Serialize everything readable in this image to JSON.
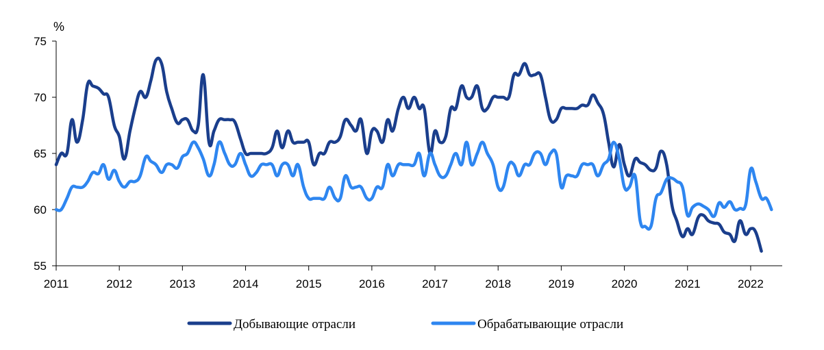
{
  "chart_data": {
    "type": "line",
    "unit_label": "%",
    "ylim": [
      55,
      75
    ],
    "yticks": [
      "55",
      "60",
      "65",
      "70",
      "75"
    ],
    "xlim": [
      2011,
      2022.5
    ],
    "xticks": [
      "2011",
      "2012",
      "2013",
      "2014",
      "2015",
      "2016",
      "2017",
      "2018",
      "2019",
      "2020",
      "2021",
      "2022"
    ],
    "grid": false,
    "legend_position": "bottom",
    "series": [
      {
        "name": "Добывающие отрасли",
        "color": "#1a3e8c",
        "points": [
          [
            2011.0,
            64.0
          ],
          [
            2011.08,
            65.0
          ],
          [
            2011.17,
            65.0
          ],
          [
            2011.25,
            68.0
          ],
          [
            2011.33,
            66.0
          ],
          [
            2011.42,
            68.0
          ],
          [
            2011.5,
            71.2
          ],
          [
            2011.58,
            71.0
          ],
          [
            2011.67,
            70.8
          ],
          [
            2011.75,
            70.3
          ],
          [
            2011.83,
            70.0
          ],
          [
            2011.92,
            67.5
          ],
          [
            2012.0,
            66.5
          ],
          [
            2012.08,
            64.5
          ],
          [
            2012.17,
            67.0
          ],
          [
            2012.25,
            69.0
          ],
          [
            2012.33,
            70.5
          ],
          [
            2012.42,
            70.0
          ],
          [
            2012.5,
            71.5
          ],
          [
            2012.58,
            73.3
          ],
          [
            2012.67,
            73.0
          ],
          [
            2012.75,
            70.5
          ],
          [
            2012.83,
            69.0
          ],
          [
            2012.92,
            67.7
          ],
          [
            2013.0,
            68.0
          ],
          [
            2013.08,
            68.0
          ],
          [
            2013.17,
            67.0
          ],
          [
            2013.25,
            67.5
          ],
          [
            2013.33,
            72.0
          ],
          [
            2013.42,
            66.0
          ],
          [
            2013.5,
            67.0
          ],
          [
            2013.58,
            68.0
          ],
          [
            2013.67,
            68.0
          ],
          [
            2013.75,
            68.0
          ],
          [
            2013.83,
            67.8
          ],
          [
            2013.92,
            66.3
          ],
          [
            2014.0,
            65.0
          ],
          [
            2014.08,
            65.0
          ],
          [
            2014.17,
            65.0
          ],
          [
            2014.25,
            65.0
          ],
          [
            2014.33,
            65.0
          ],
          [
            2014.42,
            65.5
          ],
          [
            2014.5,
            67.0
          ],
          [
            2014.58,
            65.5
          ],
          [
            2014.67,
            67.0
          ],
          [
            2014.75,
            66.0
          ],
          [
            2014.83,
            66.0
          ],
          [
            2014.92,
            66.0
          ],
          [
            2015.0,
            66.0
          ],
          [
            2015.08,
            64.0
          ],
          [
            2015.17,
            65.0
          ],
          [
            2015.25,
            65.0
          ],
          [
            2015.33,
            66.0
          ],
          [
            2015.42,
            66.0
          ],
          [
            2015.5,
            66.5
          ],
          [
            2015.58,
            68.0
          ],
          [
            2015.67,
            67.5
          ],
          [
            2015.75,
            67.0
          ],
          [
            2015.83,
            68.0
          ],
          [
            2015.92,
            65.0
          ],
          [
            2016.0,
            67.0
          ],
          [
            2016.08,
            67.0
          ],
          [
            2016.17,
            66.0
          ],
          [
            2016.25,
            68.0
          ],
          [
            2016.33,
            67.0
          ],
          [
            2016.42,
            69.0
          ],
          [
            2016.5,
            70.0
          ],
          [
            2016.58,
            69.0
          ],
          [
            2016.67,
            70.0
          ],
          [
            2016.75,
            69.0
          ],
          [
            2016.83,
            69.0
          ],
          [
            2016.92,
            65.0
          ],
          [
            2017.0,
            67.0
          ],
          [
            2017.08,
            66.0
          ],
          [
            2017.17,
            66.5
          ],
          [
            2017.25,
            69.0
          ],
          [
            2017.33,
            69.0
          ],
          [
            2017.42,
            71.0
          ],
          [
            2017.5,
            70.0
          ],
          [
            2017.58,
            70.0
          ],
          [
            2017.67,
            71.0
          ],
          [
            2017.75,
            69.0
          ],
          [
            2017.83,
            69.0
          ],
          [
            2017.92,
            70.0
          ],
          [
            2018.0,
            70.0
          ],
          [
            2018.08,
            70.0
          ],
          [
            2018.17,
            70.0
          ],
          [
            2018.25,
            72.0
          ],
          [
            2018.33,
            72.0
          ],
          [
            2018.42,
            73.0
          ],
          [
            2018.5,
            72.0
          ],
          [
            2018.58,
            72.0
          ],
          [
            2018.67,
            72.0
          ],
          [
            2018.75,
            70.0
          ],
          [
            2018.83,
            68.0
          ],
          [
            2018.92,
            68.0
          ],
          [
            2019.0,
            69.0
          ],
          [
            2019.08,
            69.0
          ],
          [
            2019.17,
            69.0
          ],
          [
            2019.25,
            69.0
          ],
          [
            2019.33,
            69.3
          ],
          [
            2019.42,
            69.3
          ],
          [
            2019.5,
            70.2
          ],
          [
            2019.58,
            69.5
          ],
          [
            2019.67,
            68.5
          ],
          [
            2019.75,
            66.0
          ],
          [
            2019.83,
            63.8
          ],
          [
            2019.92,
            65.8
          ],
          [
            2020.0,
            64.0
          ],
          [
            2020.08,
            63.0
          ],
          [
            2020.17,
            64.5
          ],
          [
            2020.25,
            64.2
          ],
          [
            2020.33,
            64.0
          ],
          [
            2020.42,
            63.5
          ],
          [
            2020.5,
            63.7
          ],
          [
            2020.58,
            65.2
          ],
          [
            2020.67,
            64.0
          ],
          [
            2020.75,
            60.5
          ],
          [
            2020.83,
            59.0
          ],
          [
            2020.92,
            57.6
          ],
          [
            2021.0,
            58.3
          ],
          [
            2021.08,
            57.8
          ],
          [
            2021.17,
            59.3
          ],
          [
            2021.25,
            59.5
          ],
          [
            2021.33,
            59.0
          ],
          [
            2021.42,
            58.8
          ],
          [
            2021.5,
            58.7
          ],
          [
            2021.58,
            58.0
          ],
          [
            2021.67,
            57.8
          ],
          [
            2021.75,
            57.2
          ],
          [
            2021.83,
            59.0
          ],
          [
            2021.92,
            57.8
          ],
          [
            2022.0,
            58.3
          ],
          [
            2022.08,
            58.0
          ],
          [
            2022.17,
            56.3
          ]
        ]
      },
      {
        "name": "Обрабатывающие отрасли",
        "color": "#2e86f0",
        "points": [
          [
            2011.0,
            60.0
          ],
          [
            2011.08,
            60.0
          ],
          [
            2011.17,
            61.0
          ],
          [
            2011.25,
            62.0
          ],
          [
            2011.33,
            62.0
          ],
          [
            2011.42,
            62.0
          ],
          [
            2011.5,
            62.5
          ],
          [
            2011.58,
            63.3
          ],
          [
            2011.67,
            63.2
          ],
          [
            2011.75,
            64.0
          ],
          [
            2011.83,
            62.7
          ],
          [
            2011.92,
            63.5
          ],
          [
            2012.0,
            62.5
          ],
          [
            2012.08,
            62.0
          ],
          [
            2012.17,
            62.5
          ],
          [
            2012.25,
            62.5
          ],
          [
            2012.33,
            63.0
          ],
          [
            2012.42,
            64.7
          ],
          [
            2012.5,
            64.3
          ],
          [
            2012.58,
            64.0
          ],
          [
            2012.67,
            63.3
          ],
          [
            2012.75,
            64.0
          ],
          [
            2012.83,
            64.0
          ],
          [
            2012.92,
            63.7
          ],
          [
            2013.0,
            64.7
          ],
          [
            2013.08,
            65.0
          ],
          [
            2013.17,
            66.0
          ],
          [
            2013.25,
            65.5
          ],
          [
            2013.33,
            64.5
          ],
          [
            2013.42,
            63.0
          ],
          [
            2013.5,
            64.0
          ],
          [
            2013.58,
            66.0
          ],
          [
            2013.67,
            65.0
          ],
          [
            2013.75,
            64.0
          ],
          [
            2013.83,
            64.0
          ],
          [
            2013.92,
            65.0
          ],
          [
            2014.0,
            64.0
          ],
          [
            2014.08,
            63.0
          ],
          [
            2014.17,
            63.3
          ],
          [
            2014.25,
            64.0
          ],
          [
            2014.33,
            64.0
          ],
          [
            2014.42,
            64.0
          ],
          [
            2014.5,
            63.0
          ],
          [
            2014.58,
            64.0
          ],
          [
            2014.67,
            64.0
          ],
          [
            2014.75,
            63.0
          ],
          [
            2014.83,
            64.0
          ],
          [
            2014.92,
            62.0
          ],
          [
            2015.0,
            61.0
          ],
          [
            2015.08,
            61.0
          ],
          [
            2015.17,
            61.0
          ],
          [
            2015.25,
            61.0
          ],
          [
            2015.33,
            62.0
          ],
          [
            2015.42,
            61.0
          ],
          [
            2015.5,
            61.0
          ],
          [
            2015.58,
            63.0
          ],
          [
            2015.67,
            62.0
          ],
          [
            2015.75,
            62.0
          ],
          [
            2015.83,
            62.0
          ],
          [
            2015.92,
            61.0
          ],
          [
            2016.0,
            61.0
          ],
          [
            2016.08,
            62.0
          ],
          [
            2016.17,
            62.0
          ],
          [
            2016.25,
            64.0
          ],
          [
            2016.33,
            63.0
          ],
          [
            2016.42,
            64.0
          ],
          [
            2016.5,
            64.0
          ],
          [
            2016.58,
            64.0
          ],
          [
            2016.67,
            64.0
          ],
          [
            2016.75,
            65.0
          ],
          [
            2016.83,
            63.0
          ],
          [
            2016.92,
            65.0
          ],
          [
            2017.0,
            64.0
          ],
          [
            2017.08,
            63.0
          ],
          [
            2017.17,
            63.0
          ],
          [
            2017.25,
            64.0
          ],
          [
            2017.33,
            65.0
          ],
          [
            2017.42,
            64.0
          ],
          [
            2017.5,
            66.0
          ],
          [
            2017.58,
            64.0
          ],
          [
            2017.67,
            65.0
          ],
          [
            2017.75,
            66.0
          ],
          [
            2017.83,
            65.0
          ],
          [
            2017.92,
            64.0
          ],
          [
            2018.0,
            62.0
          ],
          [
            2018.08,
            62.0
          ],
          [
            2018.17,
            64.0
          ],
          [
            2018.25,
            64.0
          ],
          [
            2018.33,
            63.0
          ],
          [
            2018.42,
            64.0
          ],
          [
            2018.5,
            64.0
          ],
          [
            2018.58,
            65.0
          ],
          [
            2018.67,
            65.0
          ],
          [
            2018.75,
            64.0
          ],
          [
            2018.83,
            65.0
          ],
          [
            2018.92,
            65.0
          ],
          [
            2019.0,
            62.0
          ],
          [
            2019.08,
            63.0
          ],
          [
            2019.17,
            63.0
          ],
          [
            2019.25,
            63.0
          ],
          [
            2019.33,
            64.0
          ],
          [
            2019.42,
            64.0
          ],
          [
            2019.5,
            64.0
          ],
          [
            2019.58,
            63.0
          ],
          [
            2019.67,
            64.0
          ],
          [
            2019.75,
            64.5
          ],
          [
            2019.83,
            66.0
          ],
          [
            2019.92,
            64.5
          ],
          [
            2020.0,
            62.0
          ],
          [
            2020.08,
            62.0
          ],
          [
            2020.17,
            63.0
          ],
          [
            2020.25,
            59.0
          ],
          [
            2020.33,
            58.5
          ],
          [
            2020.42,
            58.5
          ],
          [
            2020.5,
            61.0
          ],
          [
            2020.58,
            61.5
          ],
          [
            2020.67,
            62.7
          ],
          [
            2020.75,
            62.8
          ],
          [
            2020.83,
            62.5
          ],
          [
            2020.92,
            62.0
          ],
          [
            2021.0,
            59.5
          ],
          [
            2021.08,
            60.2
          ],
          [
            2021.17,
            60.5
          ],
          [
            2021.25,
            60.3
          ],
          [
            2021.33,
            60.0
          ],
          [
            2021.42,
            59.4
          ],
          [
            2021.5,
            60.6
          ],
          [
            2021.58,
            60.2
          ],
          [
            2021.67,
            60.7
          ],
          [
            2021.75,
            60.0
          ],
          [
            2021.83,
            60.1
          ],
          [
            2021.92,
            60.4
          ],
          [
            2022.0,
            63.6
          ],
          [
            2022.08,
            62.5
          ],
          [
            2022.17,
            61.0
          ],
          [
            2022.25,
            61.0
          ],
          [
            2022.33,
            60.0
          ]
        ]
      }
    ]
  }
}
